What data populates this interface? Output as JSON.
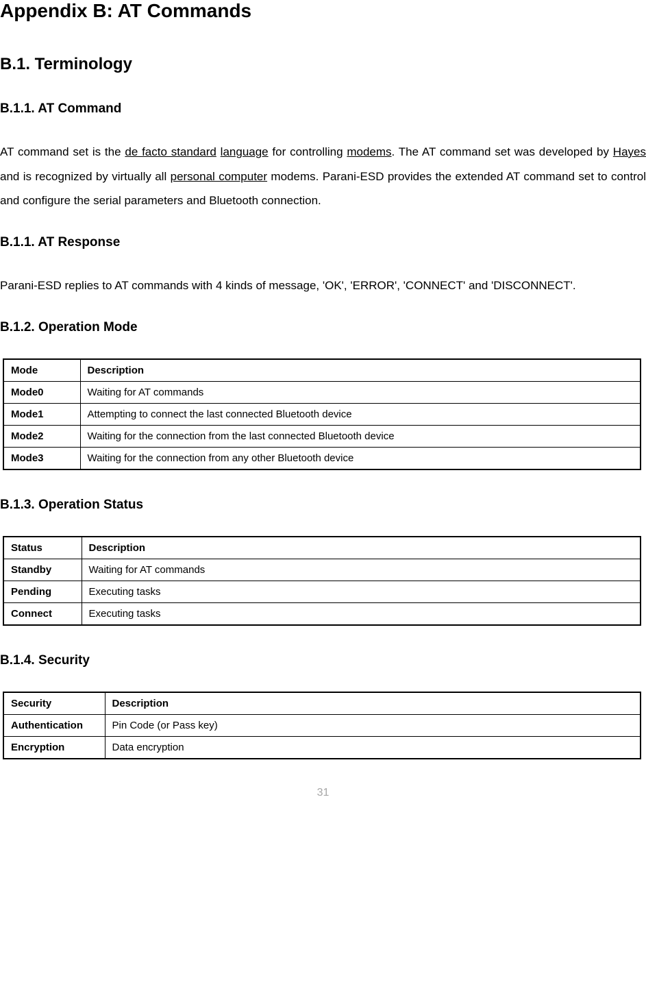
{
  "title": "Appendix B: AT Commands",
  "section_b1": {
    "heading": "B.1. Terminology",
    "b11_command": {
      "heading": "B.1.1. AT Command",
      "para_parts": {
        "p1": "AT command set is the ",
        "u1": "de facto standard",
        "sp1": " ",
        "u2": "language",
        "p2": " for controlling ",
        "u3": "modems",
        "p3": ". The AT command set was developed by ",
        "u4": "Hayes",
        "p4": " and is recognized by virtually all ",
        "u5": "personal computer",
        "p5": " modems. Parani-ESD provides the extended AT command set to control and configure the serial parameters and Bluetooth connection."
      }
    },
    "b11_response": {
      "heading": "B.1.1. AT Response",
      "para": "Parani-ESD replies to AT commands with 4 kinds of message, 'OK', 'ERROR', 'CONNECT' and 'DISCONNECT'."
    },
    "b12": {
      "heading": "B.1.2. Operation Mode",
      "table": {
        "header": [
          "Mode",
          "Description"
        ],
        "rows": [
          [
            "Mode0",
            "Waiting for AT commands"
          ],
          [
            "Mode1",
            "Attempting to connect the last connected Bluetooth device"
          ],
          [
            "Mode2",
            "Waiting for the connection from the last connected Bluetooth device"
          ],
          [
            "Mode3",
            "Waiting for the connection from any other Bluetooth device"
          ]
        ]
      }
    },
    "b13": {
      "heading": "B.1.3. Operation Status",
      "table": {
        "header": [
          "Status",
          "Description"
        ],
        "rows": [
          [
            "Standby",
            "Waiting for AT commands"
          ],
          [
            "Pending",
            "Executing tasks"
          ],
          [
            "Connect",
            "Executing tasks"
          ]
        ]
      }
    },
    "b14": {
      "heading": "B.1.4. Security",
      "table": {
        "header": [
          "Security",
          "Description"
        ],
        "rows": [
          [
            "Authentication",
            "Pin Code (or Pass key)"
          ],
          [
            "Encryption",
            "Data encryption"
          ]
        ]
      }
    }
  },
  "page_number": "31"
}
